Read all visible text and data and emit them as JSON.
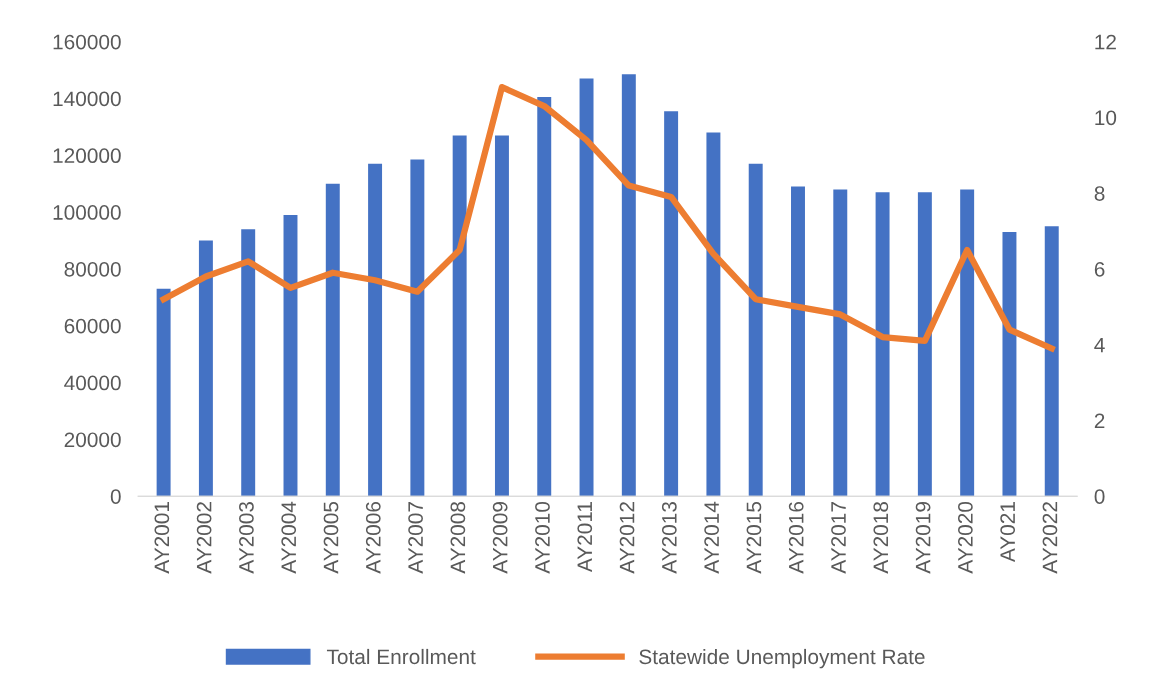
{
  "chart_data": {
    "type": "bar",
    "categories": [
      "AY2001",
      "AY2002",
      "AY2003",
      "AY2004",
      "AY2005",
      "AY2006",
      "AY2007",
      "AY2008",
      "AY2009",
      "AY2010",
      "AY2011",
      "AY2012",
      "AY2013",
      "AY2014",
      "AY2015",
      "AY2016",
      "AY2017",
      "AY2018",
      "AY2019",
      "AY2020",
      "AY021",
      "AY2022"
    ],
    "series": [
      {
        "name": "Total Enrollment",
        "color": "#4472c4",
        "values": [
          73000,
          90000,
          94000,
          99000,
          110000,
          117000,
          118500,
          127000,
          127000,
          140500,
          147000,
          148500,
          135500,
          128000,
          117000,
          109000,
          108000,
          107000,
          107000,
          108000,
          93000,
          95000
        ]
      },
      {
        "name": "Statewide Unemployment Rate",
        "type": "line",
        "axis": "y2",
        "color": "#ed7d31",
        "values": [
          5.2,
          5.8,
          6.2,
          5.5,
          5.9,
          5.7,
          5.4,
          6.5,
          10.8,
          10.3,
          9.4,
          8.2,
          7.9,
          6.4,
          5.2,
          5.0,
          4.8,
          4.2,
          4.1,
          6.5,
          4.4,
          3.9
        ]
      }
    ],
    "ylim": [
      0,
      160000
    ],
    "yticks": [
      0,
      20000,
      40000,
      60000,
      80000,
      100000,
      120000,
      140000,
      160000
    ],
    "y2lim": [
      0,
      12
    ],
    "y2ticks": [
      0,
      2,
      4,
      6,
      8,
      10,
      12
    ],
    "grid": false,
    "legend": "bottom",
    "marker": "none",
    "line_style": "solid"
  }
}
